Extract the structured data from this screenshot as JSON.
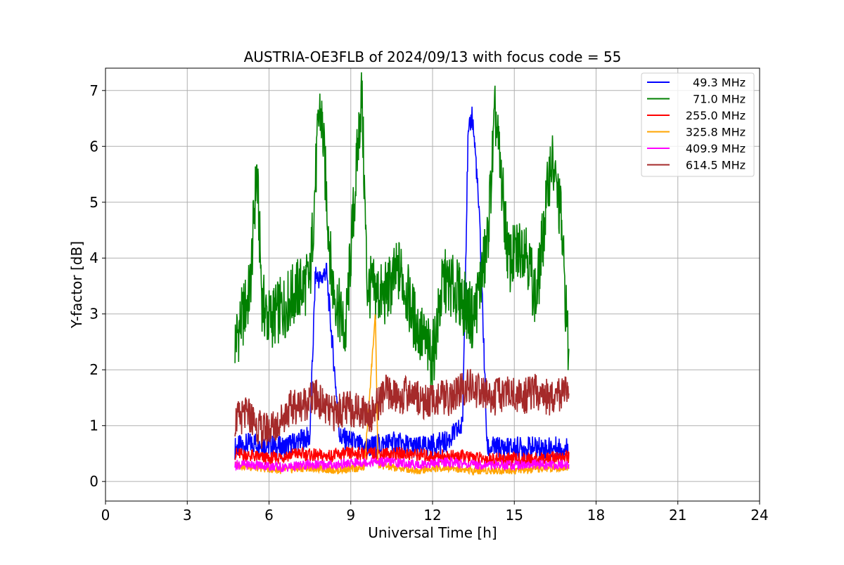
{
  "chart_data": {
    "type": "line",
    "title": "AUSTRIA-OE3FLB of 2024/09/13 with focus code = 55",
    "xlabel": "Universal Time [h]",
    "ylabel": "Y-factor [dB]",
    "xlim": [
      0,
      24
    ],
    "ylim": [
      -0.35,
      7.4
    ],
    "xticks": [
      0,
      3,
      6,
      9,
      12,
      15,
      18,
      21,
      24
    ],
    "yticks": [
      0,
      1,
      2,
      3,
      4,
      5,
      6,
      7
    ],
    "grid": true,
    "legend_position": "upper-right",
    "sampling_note_hours": [
      4.75,
      17.0
    ],
    "series": [
      {
        "name": "49.3 MHz",
        "color": "#0000ff",
        "x": [
          4.75,
          5.5,
          6.5,
          7.5,
          7.7,
          7.9,
          8.1,
          8.3,
          8.6,
          9.5,
          10.5,
          11.5,
          12.5,
          13.1,
          13.3,
          13.45,
          13.6,
          13.75,
          14.0,
          15.0,
          16.0,
          17.0
        ],
        "y": [
          0.6,
          0.7,
          0.6,
          0.8,
          3.7,
          3.6,
          3.8,
          2.6,
          0.8,
          0.6,
          0.7,
          0.6,
          0.7,
          1.0,
          6.1,
          6.6,
          5.7,
          4.4,
          0.6,
          0.6,
          0.6,
          0.6
        ]
      },
      {
        "name": "71.0 MHz",
        "color": "#008000",
        "x": [
          4.75,
          5.0,
          5.3,
          5.55,
          5.75,
          6.0,
          6.5,
          7.0,
          7.5,
          7.85,
          7.95,
          8.3,
          8.8,
          9.4,
          9.6,
          10.2,
          10.8,
          11.4,
          12.0,
          12.4,
          12.9,
          13.5,
          14.0,
          14.3,
          14.8,
          15.4,
          15.8,
          16.35,
          16.7,
          17.0
        ],
        "y": [
          2.5,
          2.9,
          3.4,
          5.6,
          3.2,
          2.9,
          3.1,
          3.4,
          3.6,
          6.7,
          6.4,
          3.6,
          2.6,
          7.0,
          3.5,
          3.3,
          3.8,
          2.8,
          2.2,
          3.6,
          3.4,
          2.9,
          4.2,
          6.6,
          3.9,
          4.3,
          3.2,
          5.8,
          4.8,
          2.2
        ]
      },
      {
        "name": "255.0 MHz",
        "color": "#ff0000",
        "x": [
          4.75,
          5.5,
          6.0,
          6.5,
          7.0,
          8.0,
          9.0,
          10.0,
          11.0,
          12.0,
          13.0,
          14.0,
          15.0,
          16.0,
          17.0
        ],
        "y": [
          0.5,
          0.45,
          0.4,
          0.45,
          0.5,
          0.45,
          0.5,
          0.5,
          0.5,
          0.45,
          0.45,
          0.4,
          0.4,
          0.4,
          0.45
        ]
      },
      {
        "name": "325.8 MHz",
        "color": "#ffa500",
        "x": [
          4.75,
          5.5,
          6.5,
          7.5,
          8.5,
          9.5,
          9.9,
          10.0,
          10.5,
          11.5,
          12.5,
          13.5,
          14.5,
          15.5,
          16.5,
          17.0
        ],
        "y": [
          0.3,
          0.25,
          0.2,
          0.25,
          0.2,
          0.25,
          3.0,
          0.3,
          0.25,
          0.2,
          0.25,
          0.2,
          0.2,
          0.2,
          0.25,
          0.25
        ]
      },
      {
        "name": "409.9 MHz",
        "color": "#ff00ff",
        "x": [
          4.75,
          5.5,
          6.5,
          7.5,
          8.5,
          9.5,
          10.5,
          11.5,
          12.5,
          13.5,
          14.5,
          15.5,
          16.5,
          17.0
        ],
        "y": [
          0.3,
          0.3,
          0.25,
          0.3,
          0.3,
          0.35,
          0.35,
          0.3,
          0.35,
          0.3,
          0.3,
          0.3,
          0.3,
          0.3
        ]
      },
      {
        "name": "614.5 MHz",
        "color": "#a52a2a",
        "x": [
          4.75,
          5.25,
          5.75,
          6.25,
          6.75,
          7.25,
          7.75,
          8.25,
          8.75,
          9.25,
          9.75,
          10.25,
          10.75,
          11.25,
          11.75,
          12.25,
          12.75,
          13.25,
          13.75,
          14.25,
          14.75,
          15.25,
          15.75,
          16.25,
          16.75,
          17.0
        ],
        "y": [
          1.1,
          1.2,
          0.9,
          1.0,
          1.3,
          1.4,
          1.5,
          1.2,
          1.3,
          1.3,
          1.2,
          1.6,
          1.5,
          1.6,
          1.4,
          1.5,
          1.5,
          1.7,
          1.6,
          1.5,
          1.6,
          1.5,
          1.6,
          1.5,
          1.6,
          1.5
        ]
      }
    ]
  }
}
